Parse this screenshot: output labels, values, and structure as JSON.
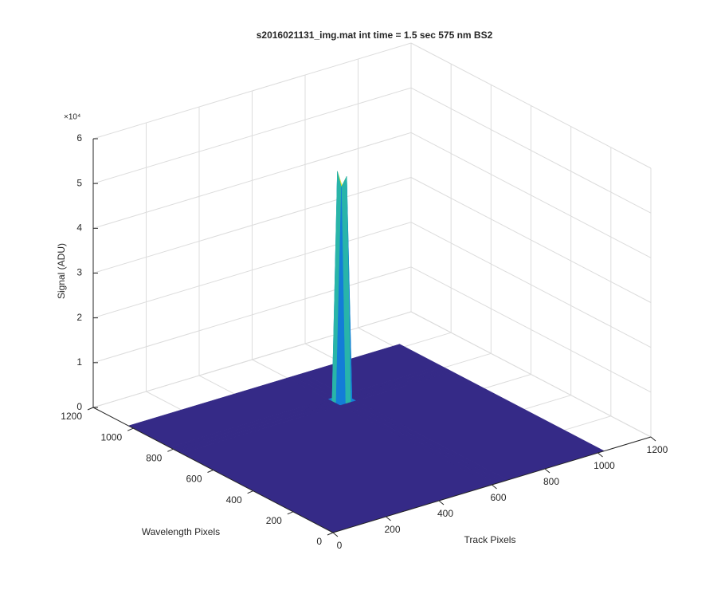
{
  "chart_data": {
    "type": "surface",
    "title": "s2016021131_img.mat int time = 1.5 sec  575 nm BS2",
    "xlabel": "Track Pixels",
    "ylabel": "Wavelength Pixels",
    "zlabel": "Signal (ADU)",
    "z_exponent": "×10⁴",
    "x": [
      0,
      600,
      620,
      640,
      660,
      1024
    ],
    "y": [
      0,
      760,
      780,
      800,
      820,
      1024
    ],
    "z": [
      [
        0,
        0,
        0,
        0,
        0,
        0
      ],
      [
        0,
        0,
        0,
        0,
        0,
        0
      ],
      [
        0,
        0,
        48000,
        50000,
        0,
        0
      ],
      [
        0,
        0,
        51000,
        47000,
        0,
        0
      ],
      [
        0,
        0,
        0,
        0,
        0,
        0
      ],
      [
        0,
        0,
        0,
        0,
        0,
        0
      ]
    ],
    "xlim": [
      0,
      1200
    ],
    "xticks": [
      0,
      200,
      400,
      600,
      800,
      1000,
      1200
    ],
    "ylim": [
      0,
      1200
    ],
    "yticks": [
      0,
      200,
      400,
      600,
      800,
      1000,
      1200
    ],
    "zlim": [
      0,
      60000
    ],
    "zticks": [
      {
        "value": 0,
        "label": "0"
      },
      {
        "value": 10000,
        "label": "1"
      },
      {
        "value": 20000,
        "label": "2"
      },
      {
        "value": 30000,
        "label": "3"
      },
      {
        "value": 40000,
        "label": "4"
      },
      {
        "value": 50000,
        "label": "5"
      },
      {
        "value": 60000,
        "label": "6"
      }
    ],
    "grid": true,
    "colormap": [
      "#352a87",
      "#0f5cdd",
      "#1481d6",
      "#06a4ca",
      "#2eb7a4",
      "#87bf77",
      "#d1bb59",
      "#fec832",
      "#f9fb0e"
    ]
  }
}
